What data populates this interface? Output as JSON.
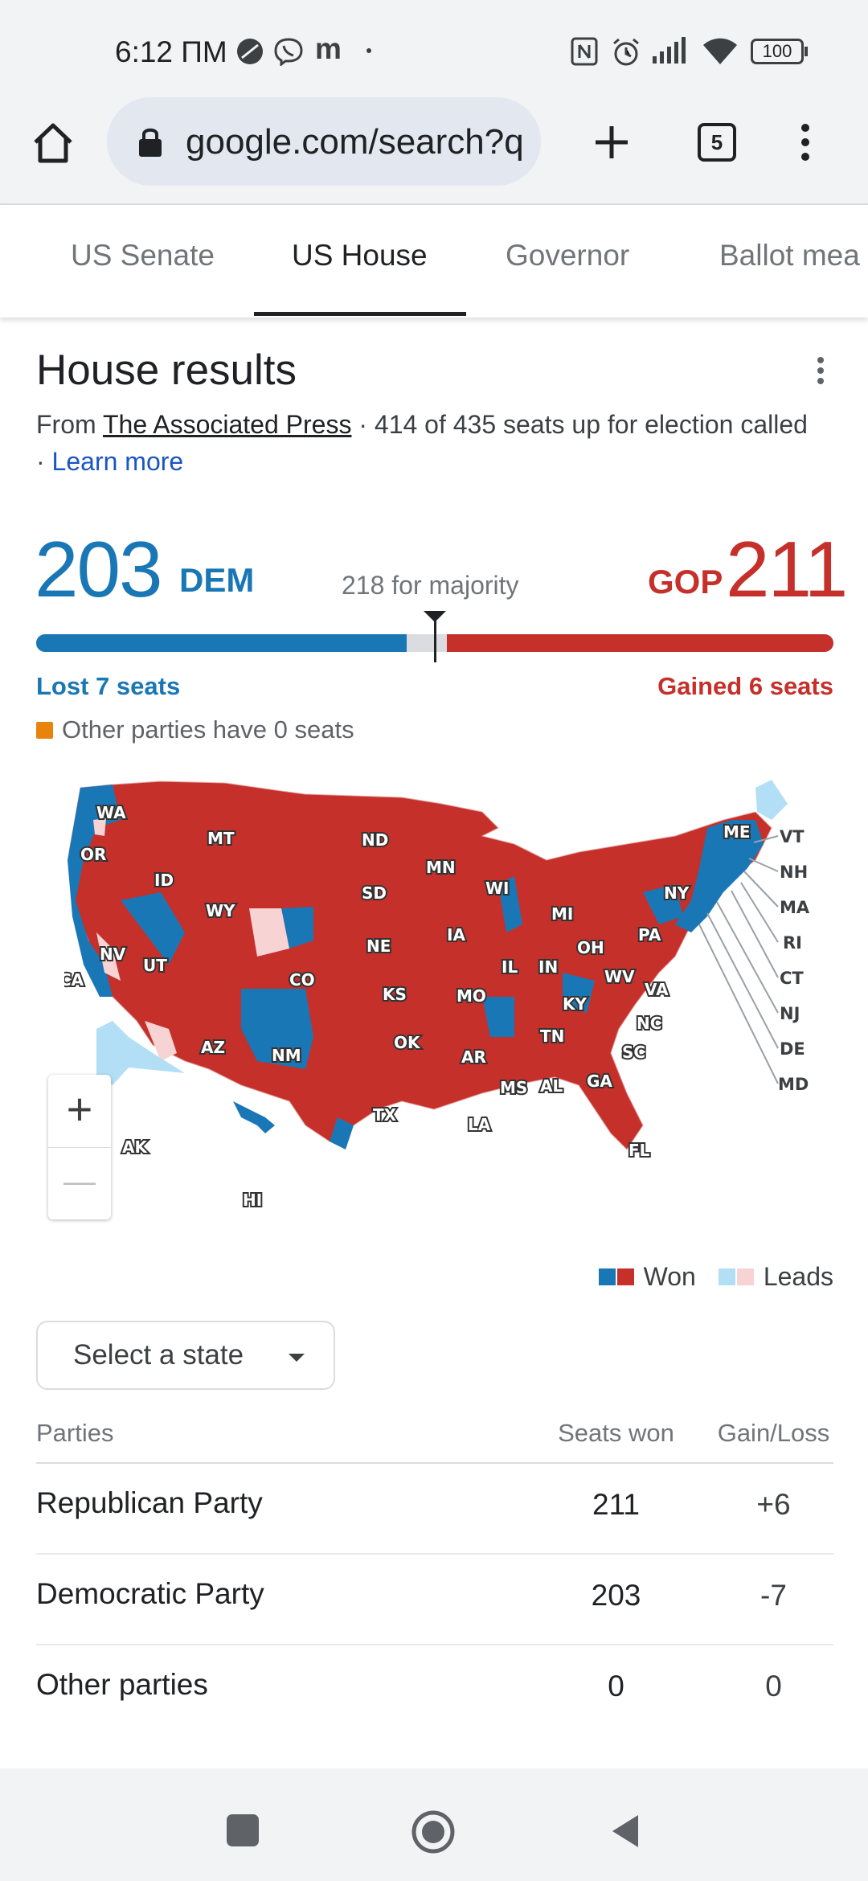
{
  "status_bar": {
    "time": "6:12 ПМ",
    "m_glyph": "m",
    "battery": "100"
  },
  "browser": {
    "url": "google.com/search?q",
    "tab_count": "5"
  },
  "tabs": [
    {
      "label": "US Senate"
    },
    {
      "label": "US House"
    },
    {
      "label": "Governor"
    },
    {
      "label": "Ballot mea"
    }
  ],
  "heading": "House results",
  "source": {
    "prefix": "From ",
    "link": "The Associated Press",
    "middle": " · 414 of 435 seats up for election called · ",
    "learn_more": "Learn more"
  },
  "tally": {
    "dem_seats": "203",
    "dem_label": "DEM",
    "gop_seats": "211",
    "gop_label": "GOP",
    "majority_text": "218 for majority",
    "dem_change": "Lost 7 seats",
    "gop_change": "Gained 6 seats",
    "other_text": "Other parties have 0 seats",
    "total_seats": 435,
    "dem_value": 203,
    "gop_value": 211
  },
  "colors": {
    "dem": "#1a77b5",
    "gop": "#c5302b",
    "dem_lead": "#b3dff6",
    "gop_lead": "#f7d3d3",
    "other": "#e8830c"
  },
  "map": {
    "state_labels": [
      "WA",
      "OR",
      "CA",
      "NV",
      "ID",
      "MT",
      "WY",
      "UT",
      "CO",
      "AZ",
      "NM",
      "ND",
      "SD",
      "NE",
      "KS",
      "OK",
      "TX",
      "MN",
      "IA",
      "MO",
      "AR",
      "LA",
      "WI",
      "IL",
      "MI",
      "IN",
      "OH",
      "KY",
      "TN",
      "MS",
      "AL",
      "GA",
      "FL",
      "SC",
      "NC",
      "VA",
      "WV",
      "PA",
      "NY",
      "ME",
      "AK",
      "HI"
    ],
    "ne_labels": [
      "VT",
      "NH",
      "MA",
      "RI",
      "CT",
      "NJ",
      "DE",
      "MD"
    ],
    "zoom_in": "+",
    "zoom_out": "—"
  },
  "legend": {
    "won": "Won",
    "leads": "Leads"
  },
  "select": {
    "label": "Select a state"
  },
  "table": {
    "headers": {
      "party": "Parties",
      "seats": "Seats won",
      "gain": "Gain/Loss"
    },
    "rows": [
      {
        "party": "Republican Party",
        "seats": "211",
        "gain": "+6"
      },
      {
        "party": "Democratic Party",
        "seats": "203",
        "gain": "-7"
      },
      {
        "party": "Other parties",
        "seats": "0",
        "gain": "0"
      }
    ]
  }
}
